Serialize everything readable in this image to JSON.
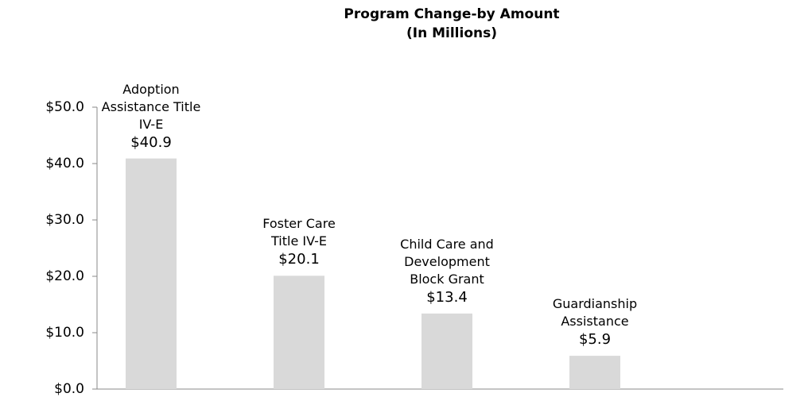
{
  "chart_data": {
    "type": "bar",
    "title": "Program Change-by Amount",
    "subtitle": "(In Millions)",
    "categories": [
      "Adoption\nAssistance Title\nIV-E",
      "Foster Care\nTitle IV-E",
      "Child Care and\nDevelopment\nBlock Grant",
      "Guardianship\nAssistance"
    ],
    "values": [
      40.9,
      20.1,
      13.4,
      5.9
    ],
    "value_labels": [
      "$40.9",
      "$20.1",
      "$13.4",
      "$5.9"
    ],
    "color": "#d9d9d9",
    "ylim": [
      0,
      50
    ],
    "yticks": [
      {
        "value": 0,
        "label": "$0.0"
      },
      {
        "value": 10,
        "label": "$10.0"
      },
      {
        "value": 20,
        "label": "$20.0"
      },
      {
        "value": 30,
        "label": "$30.0"
      },
      {
        "value": 40,
        "label": "$40.0"
      },
      {
        "value": 50,
        "label": "$50.0"
      }
    ],
    "grid": false
  }
}
